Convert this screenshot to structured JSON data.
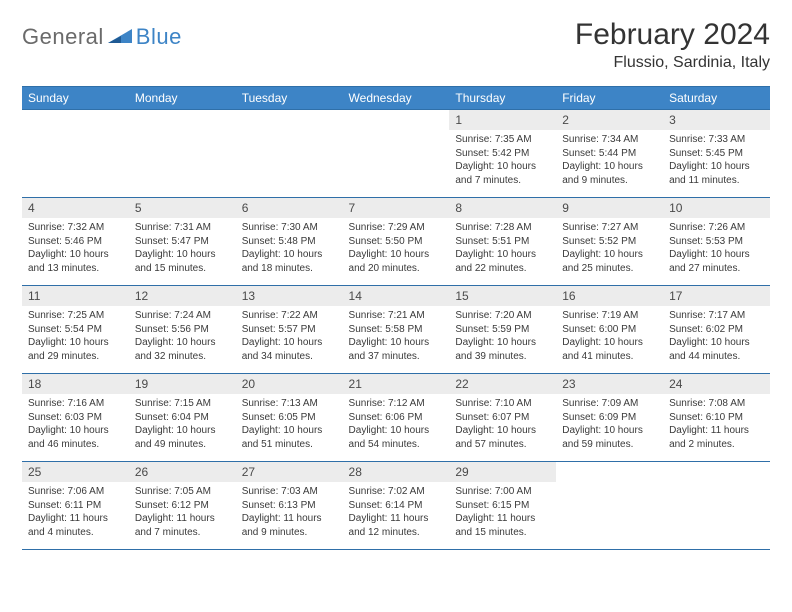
{
  "brand": {
    "general": "General",
    "blue": "Blue"
  },
  "title": "February 2024",
  "location": "Flussio, Sardinia, Italy",
  "colors": {
    "header_bg": "#3d84c6",
    "header_text": "#ffffff",
    "border": "#2f6fa8",
    "daynum_bg": "#ececec",
    "body_text": "#3a3a3a",
    "logo_gray": "#6a6a6a",
    "logo_blue": "#3d84c6"
  },
  "weekdays": [
    "Sunday",
    "Monday",
    "Tuesday",
    "Wednesday",
    "Thursday",
    "Friday",
    "Saturday"
  ],
  "weeks": [
    [
      null,
      null,
      null,
      null,
      {
        "n": "1",
        "sr": "7:35 AM",
        "ss": "5:42 PM",
        "dl": "10 hours and 7 minutes."
      },
      {
        "n": "2",
        "sr": "7:34 AM",
        "ss": "5:44 PM",
        "dl": "10 hours and 9 minutes."
      },
      {
        "n": "3",
        "sr": "7:33 AM",
        "ss": "5:45 PM",
        "dl": "10 hours and 11 minutes."
      }
    ],
    [
      {
        "n": "4",
        "sr": "7:32 AM",
        "ss": "5:46 PM",
        "dl": "10 hours and 13 minutes."
      },
      {
        "n": "5",
        "sr": "7:31 AM",
        "ss": "5:47 PM",
        "dl": "10 hours and 15 minutes."
      },
      {
        "n": "6",
        "sr": "7:30 AM",
        "ss": "5:48 PM",
        "dl": "10 hours and 18 minutes."
      },
      {
        "n": "7",
        "sr": "7:29 AM",
        "ss": "5:50 PM",
        "dl": "10 hours and 20 minutes."
      },
      {
        "n": "8",
        "sr": "7:28 AM",
        "ss": "5:51 PM",
        "dl": "10 hours and 22 minutes."
      },
      {
        "n": "9",
        "sr": "7:27 AM",
        "ss": "5:52 PM",
        "dl": "10 hours and 25 minutes."
      },
      {
        "n": "10",
        "sr": "7:26 AM",
        "ss": "5:53 PM",
        "dl": "10 hours and 27 minutes."
      }
    ],
    [
      {
        "n": "11",
        "sr": "7:25 AM",
        "ss": "5:54 PM",
        "dl": "10 hours and 29 minutes."
      },
      {
        "n": "12",
        "sr": "7:24 AM",
        "ss": "5:56 PM",
        "dl": "10 hours and 32 minutes."
      },
      {
        "n": "13",
        "sr": "7:22 AM",
        "ss": "5:57 PM",
        "dl": "10 hours and 34 minutes."
      },
      {
        "n": "14",
        "sr": "7:21 AM",
        "ss": "5:58 PM",
        "dl": "10 hours and 37 minutes."
      },
      {
        "n": "15",
        "sr": "7:20 AM",
        "ss": "5:59 PM",
        "dl": "10 hours and 39 minutes."
      },
      {
        "n": "16",
        "sr": "7:19 AM",
        "ss": "6:00 PM",
        "dl": "10 hours and 41 minutes."
      },
      {
        "n": "17",
        "sr": "7:17 AM",
        "ss": "6:02 PM",
        "dl": "10 hours and 44 minutes."
      }
    ],
    [
      {
        "n": "18",
        "sr": "7:16 AM",
        "ss": "6:03 PM",
        "dl": "10 hours and 46 minutes."
      },
      {
        "n": "19",
        "sr": "7:15 AM",
        "ss": "6:04 PM",
        "dl": "10 hours and 49 minutes."
      },
      {
        "n": "20",
        "sr": "7:13 AM",
        "ss": "6:05 PM",
        "dl": "10 hours and 51 minutes."
      },
      {
        "n": "21",
        "sr": "7:12 AM",
        "ss": "6:06 PM",
        "dl": "10 hours and 54 minutes."
      },
      {
        "n": "22",
        "sr": "7:10 AM",
        "ss": "6:07 PM",
        "dl": "10 hours and 57 minutes."
      },
      {
        "n": "23",
        "sr": "7:09 AM",
        "ss": "6:09 PM",
        "dl": "10 hours and 59 minutes."
      },
      {
        "n": "24",
        "sr": "7:08 AM",
        "ss": "6:10 PM",
        "dl": "11 hours and 2 minutes."
      }
    ],
    [
      {
        "n": "25",
        "sr": "7:06 AM",
        "ss": "6:11 PM",
        "dl": "11 hours and 4 minutes."
      },
      {
        "n": "26",
        "sr": "7:05 AM",
        "ss": "6:12 PM",
        "dl": "11 hours and 7 minutes."
      },
      {
        "n": "27",
        "sr": "7:03 AM",
        "ss": "6:13 PM",
        "dl": "11 hours and 9 minutes."
      },
      {
        "n": "28",
        "sr": "7:02 AM",
        "ss": "6:14 PM",
        "dl": "11 hours and 12 minutes."
      },
      {
        "n": "29",
        "sr": "7:00 AM",
        "ss": "6:15 PM",
        "dl": "11 hours and 15 minutes."
      },
      null,
      null
    ]
  ],
  "labels": {
    "sunrise": "Sunrise:",
    "sunset": "Sunset:",
    "daylight": "Daylight:"
  }
}
